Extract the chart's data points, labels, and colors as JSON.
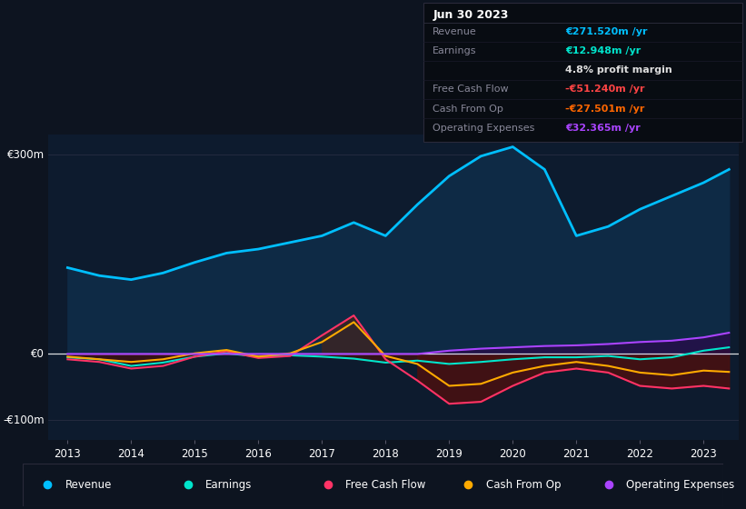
{
  "bg_color": "#0d1420",
  "plot_bg_color": "#0d1b2e",
  "years": [
    2013.0,
    2013.5,
    2014.0,
    2014.5,
    2015.0,
    2015.5,
    2016.0,
    2016.5,
    2017.0,
    2017.5,
    2018.0,
    2018.5,
    2019.0,
    2019.5,
    2020.0,
    2020.5,
    2021.0,
    2021.5,
    2022.0,
    2022.5,
    2023.0,
    2023.4
  ],
  "revenue": [
    130,
    118,
    112,
    122,
    138,
    152,
    158,
    168,
    178,
    198,
    178,
    225,
    268,
    298,
    312,
    278,
    178,
    192,
    218,
    238,
    258,
    278
  ],
  "earnings": [
    -5,
    -8,
    -18,
    -13,
    -4,
    1,
    -4,
    -2,
    -4,
    -7,
    -13,
    -10,
    -15,
    -12,
    -8,
    -5,
    -5,
    -3,
    -8,
    -5,
    5,
    10
  ],
  "free_cash_flow": [
    -8,
    -12,
    -22,
    -18,
    -4,
    4,
    -6,
    -3,
    28,
    58,
    -8,
    -40,
    -75,
    -72,
    -48,
    -28,
    -22,
    -28,
    -48,
    -52,
    -48,
    -52
  ],
  "cash_from_op": [
    -4,
    -8,
    -12,
    -8,
    1,
    6,
    -4,
    1,
    18,
    48,
    -3,
    -15,
    -48,
    -45,
    -28,
    -18,
    -12,
    -18,
    -28,
    -32,
    -25,
    -27
  ],
  "operating_expenses": [
    0,
    0,
    0,
    0,
    0,
    0,
    0,
    0,
    0,
    0,
    0,
    0,
    5,
    8,
    10,
    12,
    13,
    15,
    18,
    20,
    25,
    32
  ],
  "line_colors": {
    "revenue": "#00bfff",
    "earnings": "#00e5cc",
    "free_cash_flow": "#ff3366",
    "cash_from_op": "#ffaa00",
    "operating_expenses": "#aa44ff"
  },
  "ylim": [
    -130,
    330
  ],
  "xticks": [
    2013,
    2014,
    2015,
    2016,
    2017,
    2018,
    2019,
    2020,
    2021,
    2022,
    2023
  ],
  "legend_items": [
    {
      "label": "Revenue",
      "color": "#00bfff"
    },
    {
      "label": "Earnings",
      "color": "#00e5cc"
    },
    {
      "label": "Free Cash Flow",
      "color": "#ff3366"
    },
    {
      "label": "Cash From Op",
      "color": "#ffaa00"
    },
    {
      "label": "Operating Expenses",
      "color": "#aa44ff"
    }
  ],
  "info_box": {
    "date": "Jun 30 2023",
    "rows": [
      {
        "label": "Revenue",
        "value": "€271.520m /yr",
        "value_color": "#00bfff",
        "label_color": "#888899"
      },
      {
        "label": "Earnings",
        "value": "€12.948m /yr",
        "value_color": "#00e5cc",
        "label_color": "#888899"
      },
      {
        "label": "",
        "value": "4.8% profit margin",
        "value_color": "#dddddd",
        "label_color": "#888899"
      },
      {
        "label": "Free Cash Flow",
        "value": "-€51.240m /yr",
        "value_color": "#ff4444",
        "label_color": "#888899"
      },
      {
        "label": "Cash From Op",
        "value": "-€27.501m /yr",
        "value_color": "#ff6600",
        "label_color": "#888899"
      },
      {
        "label": "Operating Expenses",
        "value": "€32.365m /yr",
        "value_color": "#aa44ff",
        "label_color": "#888899"
      }
    ]
  }
}
